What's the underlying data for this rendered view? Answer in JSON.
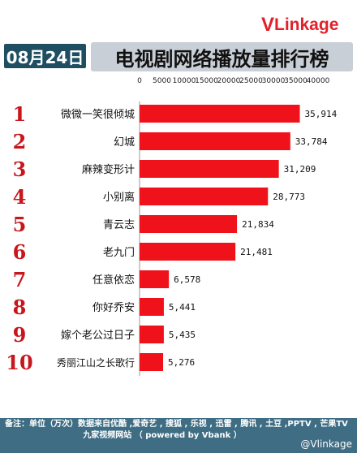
{
  "header": {
    "date": "08月24日",
    "title": "电视剧网络播放量排行榜",
    "logo_v": "V",
    "logo_rest": "Linkage"
  },
  "footer": {
    "note_line1": "备注：单位（万次）数据来自优酷 ,爱奇艺 , 搜狐 , 乐视 , 迅雷 , 腾讯 , 土豆 ,PPTV , 芒果TV",
    "note_line2": "九家视频网站    （ powered by Vbank ）",
    "watermark": "@Vlinkage"
  },
  "colors": {
    "bar": "#f0121a",
    "rank": "#c8161d",
    "date_bg": "#1f4e63",
    "title_bg": "#c9cfd6",
    "footer_bg": "#3e6d84"
  },
  "chart_data": {
    "type": "bar",
    "orientation": "horizontal",
    "title": "电视剧网络播放量排行榜",
    "xlim": [
      0,
      40000
    ],
    "ticks": [
      0,
      5000,
      10000,
      15000,
      20000,
      25000,
      30000,
      35000,
      40000
    ],
    "tick_labels": [
      "0",
      "5000",
      "10000",
      "15000",
      "20000",
      "25000",
      "30000",
      "35000",
      "40000"
    ],
    "ranks": [
      "1",
      "2",
      "3",
      "4",
      "5",
      "6",
      "7",
      "8",
      "9",
      "10"
    ],
    "categories": [
      "微微一笑很倾城",
      "幻城",
      "麻辣变形计",
      "小别离",
      "青云志",
      "老九门",
      "任意依恋",
      "你好乔安",
      "嫁个老公过日子",
      "秀丽江山之长歌行"
    ],
    "values": [
      35914,
      33784,
      31209,
      28773,
      21834,
      21481,
      6578,
      5441,
      5435,
      5276
    ],
    "value_labels": [
      "35,914",
      "33,784",
      "31,209",
      "28,773",
      "21,834",
      "21,481",
      "6,578",
      "5,441",
      "5,435",
      "5,276"
    ]
  }
}
